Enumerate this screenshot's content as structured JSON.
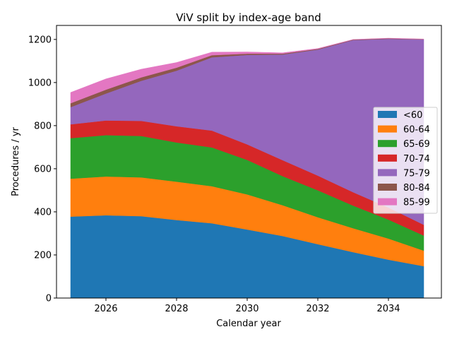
{
  "chart_data": {
    "type": "area",
    "stacked": true,
    "title": "ViV split by index-age band",
    "xlabel": "Calendar year",
    "ylabel": "Procedures / yr",
    "xlim": [
      2024.6,
      2035.5
    ],
    "ylim": [
      0,
      1265
    ],
    "xticks": [
      2026,
      2028,
      2030,
      2032,
      2034
    ],
    "yticks": [
      0,
      200,
      400,
      600,
      800,
      1000,
      1200
    ],
    "legend_position": "center-right",
    "grid": false,
    "x": [
      2025,
      2026,
      2027,
      2028,
      2029,
      2030,
      2031,
      2032,
      2033,
      2034,
      2035
    ],
    "series": [
      {
        "name": "<60",
        "color": "#1f77b4",
        "values": [
          378,
          384,
          380,
          362,
          347,
          318,
          288,
          250,
          213,
          178,
          148
        ]
      },
      {
        "name": "60-64",
        "color": "#ff7f0e",
        "values": [
          176,
          180,
          180,
          178,
          172,
          163,
          143,
          125,
          111,
          98,
          72
        ]
      },
      {
        "name": "65-69",
        "color": "#2ca02c",
        "values": [
          188,
          192,
          192,
          182,
          180,
          160,
          135,
          125,
          105,
          88,
          70
        ]
      },
      {
        "name": "70-74",
        "color": "#d62728",
        "values": [
          64,
          68,
          70,
          75,
          78,
          72,
          74,
          68,
          62,
          56,
          50
        ]
      },
      {
        "name": "75-79",
        "color": "#9467bd",
        "values": [
          80,
          125,
          186,
          258,
          340,
          415,
          490,
          585,
          706,
          783,
          860
        ]
      },
      {
        "name": "80-84",
        "color": "#8c564b",
        "values": [
          18,
          18,
          16,
          14,
          10,
          6,
          4,
          3,
          2,
          2,
          1
        ]
      },
      {
        "name": "85-99",
        "color": "#e377c2",
        "values": [
          50,
          50,
          38,
          24,
          14,
          8,
          4,
          2,
          1,
          1,
          1
        ]
      }
    ]
  }
}
